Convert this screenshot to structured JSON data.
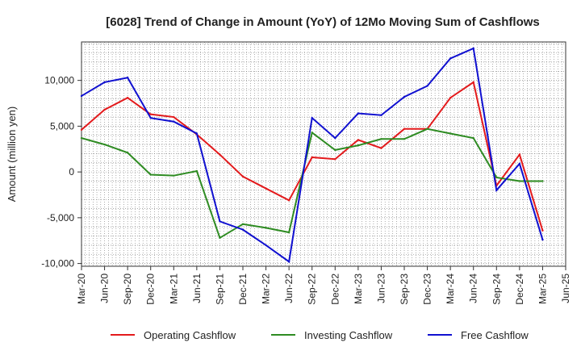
{
  "chart_data": {
    "type": "line",
    "title": "[6028]  Trend of Change in Amount (YoY) of 12Mo Moving Sum of Cashflows",
    "xlabel": "",
    "ylabel": "Amount (million yen)",
    "ylim": [
      -10300,
      14200
    ],
    "yticks": [
      -10000,
      -5000,
      0,
      5000,
      10000
    ],
    "ytick_labels": [
      "-10,000",
      "-5,000",
      "0",
      "5,000",
      "10,000"
    ],
    "x_tick_labels": [
      "Mar-20",
      "Jun-20",
      "Sep-20",
      "Dec-20",
      "Mar-21",
      "Jun-21",
      "Sep-21",
      "Dec-21",
      "Mar-22",
      "Jun-22",
      "Sep-22",
      "Dec-22",
      "Mar-23",
      "Jun-23",
      "Sep-23",
      "Dec-23",
      "Mar-24",
      "Jun-24",
      "Sep-24",
      "Dec-24",
      "Mar-25",
      "Jun-25"
    ],
    "x": [
      "Mar-20",
      "Jun-20",
      "Sep-20",
      "Dec-20",
      "Mar-21",
      "Jun-21",
      "Sep-21",
      "Dec-21",
      "Mar-22",
      "Jun-22",
      "Sep-22",
      "Dec-22",
      "Mar-23",
      "Jun-23",
      "Sep-23",
      "Dec-23",
      "Mar-24",
      "Jun-24",
      "Sep-24",
      "Dec-24",
      "Mar-25"
    ],
    "grid": true,
    "legend_position": "bottom",
    "series": [
      {
        "name": "Operating Cashflow",
        "color": "#e31a1c",
        "values": [
          4600,
          6800,
          8100,
          6300,
          6000,
          4100,
          1900,
          -500,
          -1800,
          -3100,
          1600,
          1400,
          3500,
          2600,
          4700,
          4700,
          8100,
          9800,
          -1500,
          1900,
          -6400
        ]
      },
      {
        "name": "Investing Cashflow",
        "color": "#2e8b22",
        "values": [
          3700,
          3000,
          2100,
          -300,
          -400,
          100,
          -7200,
          -5700,
          -6100,
          -6600,
          4300,
          2400,
          2900,
          3600,
          3600,
          4700,
          4200,
          3700,
          -600,
          -1000,
          -1000
        ]
      },
      {
        "name": "Free Cashflow",
        "color": "#1010d0",
        "values": [
          8300,
          9800,
          10300,
          5900,
          5500,
          4200,
          -5400,
          -6300,
          -8000,
          -9800,
          5900,
          3700,
          6400,
          6200,
          8200,
          9400,
          12400,
          13500,
          -2000,
          900,
          -7400
        ]
      }
    ]
  }
}
